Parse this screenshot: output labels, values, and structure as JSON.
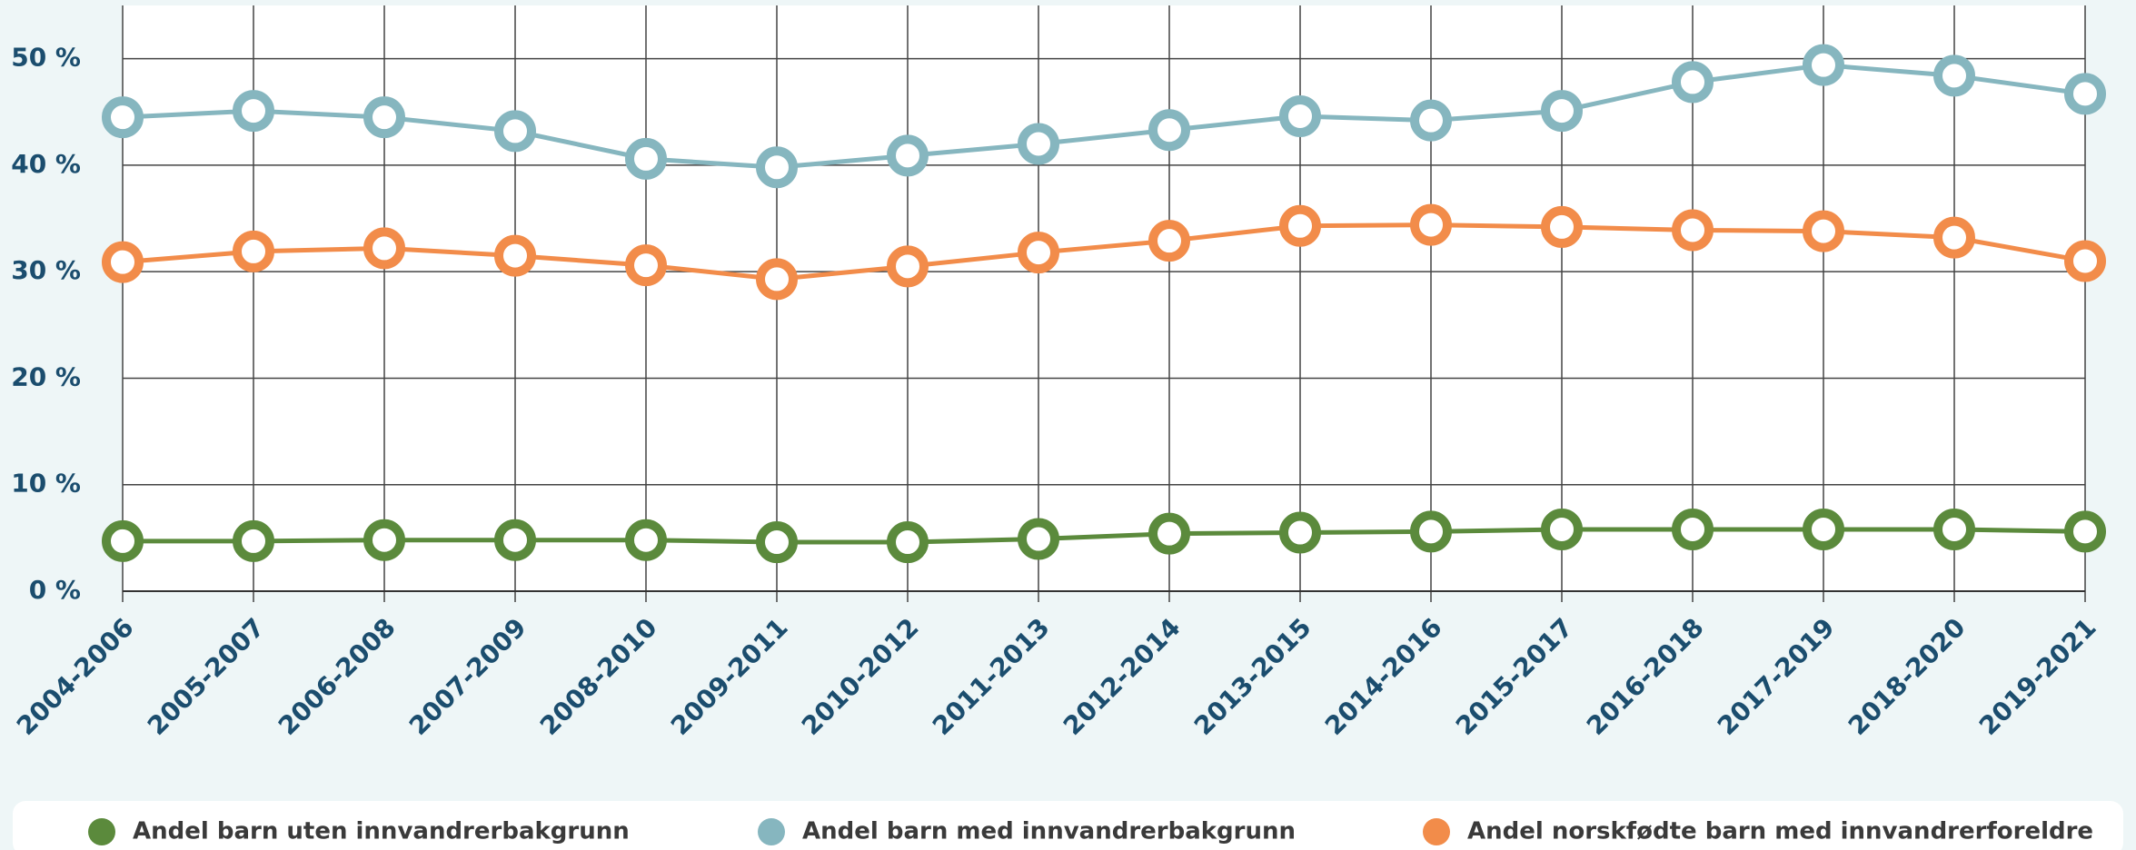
{
  "chart_data": {
    "type": "line",
    "categories": [
      "2004-2006",
      "2005-2007",
      "2006-2008",
      "2007-2009",
      "2008-2010",
      "2009-2011",
      "2010-2012",
      "2011-2013",
      "2012-2014",
      "2013-2015",
      "2014-2016",
      "2015-2017",
      "2016-2018",
      "2017-2019",
      "2018-2020",
      "2019-2021"
    ],
    "series": [
      {
        "name": "Andel barn uten innvandrerbakgrunn",
        "color": "#5b8a3c",
        "values": [
          4.7,
          4.7,
          4.8,
          4.8,
          4.8,
          4.6,
          4.6,
          4.9,
          5.4,
          5.5,
          5.6,
          5.8,
          5.8,
          5.8,
          5.8,
          5.6
        ]
      },
      {
        "name": "Andel barn med innvandrerbakgrunn",
        "color": "#86b6bf",
        "values": [
          44.5,
          45.1,
          44.5,
          43.2,
          40.6,
          39.8,
          40.9,
          42.0,
          43.3,
          44.6,
          44.2,
          45.1,
          47.8,
          49.4,
          48.4,
          46.7
        ]
      },
      {
        "name": "Andel norskfødte barn med innvandrerforeldre",
        "color": "#f28c4a",
        "values": [
          30.9,
          31.9,
          32.2,
          31.5,
          30.6,
          29.3,
          30.5,
          31.8,
          32.9,
          34.3,
          34.4,
          34.2,
          33.9,
          33.8,
          33.2,
          31.0
        ]
      }
    ],
    "ylim": [
      0,
      55
    ],
    "yticks": [
      {
        "value": 0,
        "label": "0 %"
      },
      {
        "value": 10,
        "label": "10 %"
      },
      {
        "value": 20,
        "label": "20 %"
      },
      {
        "value": 30,
        "label": "30 %"
      },
      {
        "value": 40,
        "label": "40 %"
      },
      {
        "value": 50,
        "label": "50 %"
      }
    ],
    "grid": true
  }
}
